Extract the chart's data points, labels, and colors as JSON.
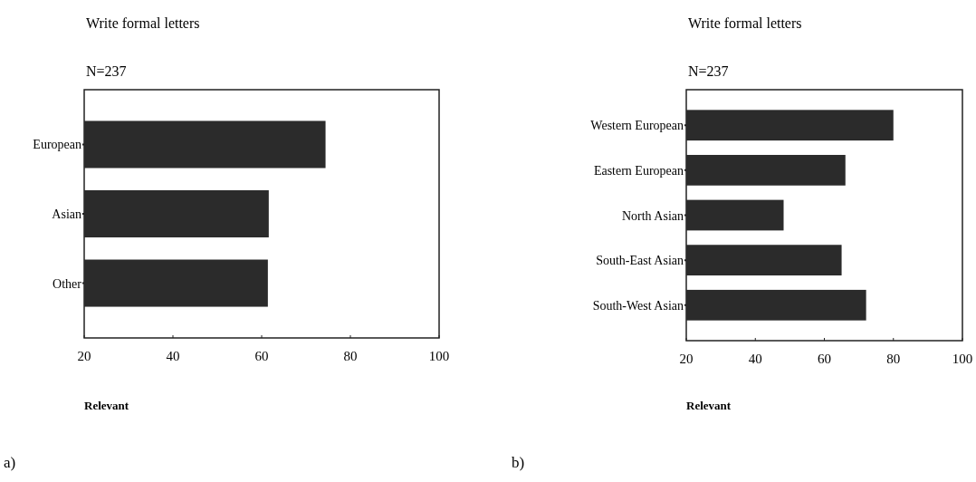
{
  "chart_data": [
    {
      "type": "bar",
      "orientation": "horizontal",
      "title": "Write formal letters",
      "subtitle": "N=237",
      "xlabel": "Relevant",
      "categories": [
        "European",
        "Asian",
        "Other"
      ],
      "values": [
        74.4,
        61.6,
        61.4
      ],
      "color": "#2b2b2b",
      "xlim": [
        20,
        100
      ],
      "xticks": [
        20,
        40,
        60,
        80,
        100
      ],
      "grid": false,
      "annotations": [
        "a)"
      ]
    },
    {
      "type": "bar",
      "orientation": "horizontal",
      "title": "Write formal letters",
      "subtitle": "N=237",
      "xlabel": "Relevant",
      "categories": [
        "Western European",
        "Eastern European",
        "North Asian",
        "South-East Asian",
        "South-West Asian"
      ],
      "values": [
        80.0,
        66.1,
        48.2,
        65.0,
        72.1
      ],
      "color": "#2b2b2b",
      "xlim": [
        20,
        100
      ],
      "xticks": [
        20,
        40,
        60,
        80,
        100
      ],
      "grid": false,
      "annotations": [
        "b)"
      ]
    }
  ]
}
